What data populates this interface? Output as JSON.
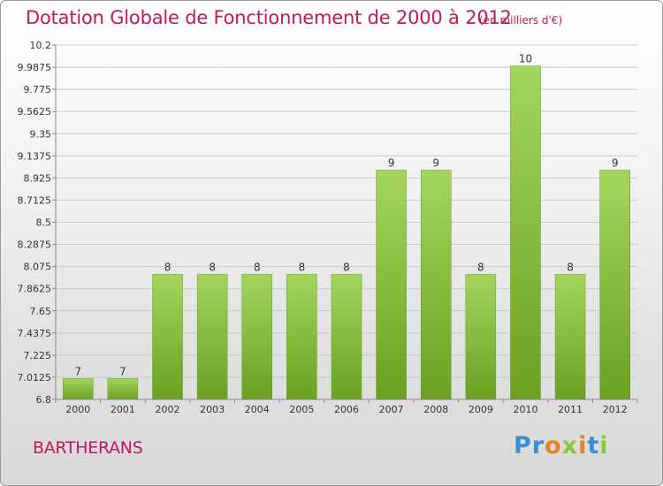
{
  "header": {
    "title": "Dotation Globale de Fonctionnement de 2000 à 2012",
    "unit_note": "(en milliers d'€)"
  },
  "footer": {
    "commune": "BARTHERANS",
    "brand": "Proxiti"
  },
  "colors": {
    "bar_light": "#a4d65e",
    "bar_dark": "#6aa121",
    "title": "#c2185b"
  },
  "chart_data": {
    "type": "bar",
    "title": "Dotation Globale de Fonctionnement de 2000 à 2012",
    "subtitle": "(en milliers d'€)",
    "xlabel": "",
    "ylabel": "",
    "categories": [
      "2000",
      "2001",
      "2002",
      "2003",
      "2004",
      "2005",
      "2006",
      "2007",
      "2008",
      "2009",
      "2010",
      "2011",
      "2012"
    ],
    "values": [
      7,
      7,
      8,
      8,
      8,
      8,
      8,
      9,
      9,
      8,
      10,
      8,
      9
    ],
    "data_labels": [
      "7",
      "7",
      "8",
      "8",
      "8",
      "8",
      "8",
      "9",
      "9",
      "8",
      "10",
      "8",
      "9"
    ],
    "ylim": [
      6.8,
      10.2
    ],
    "yticks": [
      6.8,
      7.0125,
      7.225,
      7.4375,
      7.65,
      7.8625,
      8.075,
      8.2875,
      8.5,
      8.7125,
      8.925,
      9.1375,
      9.35,
      9.5625,
      9.775,
      9.9875,
      10.2
    ],
    "ytick_labels": [
      "6.8",
      "7.0125",
      "7.225",
      "7.4375",
      "7.65",
      "7.8625",
      "8.075",
      "8.2875",
      "8.5",
      "8.7125",
      "8.925",
      "9.1375",
      "9.35",
      "9.5625",
      "9.775",
      "9.9875",
      "10.2"
    ],
    "grid": true,
    "legend": "none"
  }
}
